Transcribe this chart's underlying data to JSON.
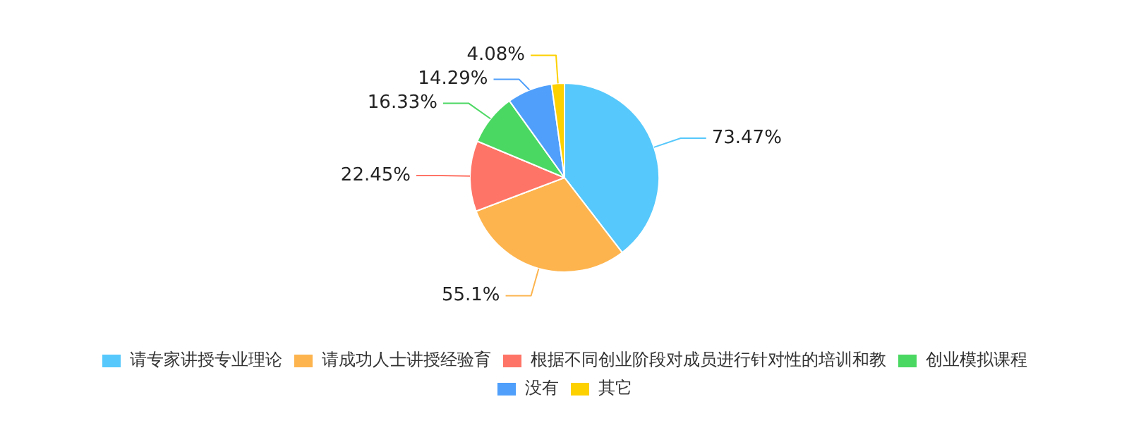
{
  "chart_data": {
    "type": "pie",
    "categories": [
      "请专家讲授专业理论",
      "请成功人士讲授经验育",
      "根据不同创业阶段对成员进行针对性的培训和教",
      "创业模拟课程",
      "没有",
      "其它"
    ],
    "values": [
      73.47,
      55.1,
      22.45,
      16.33,
      14.29,
      4.08
    ],
    "colors": [
      "#56c8fb",
      "#fdb44e",
      "#fe7466",
      "#4bd862",
      "#4f9ffb",
      "#fdd000"
    ],
    "value_labels": [
      "73.47%",
      "55.1%",
      "22.45%",
      "16.33%",
      "14.29%",
      "4.08%"
    ],
    "legend": "bottom"
  }
}
